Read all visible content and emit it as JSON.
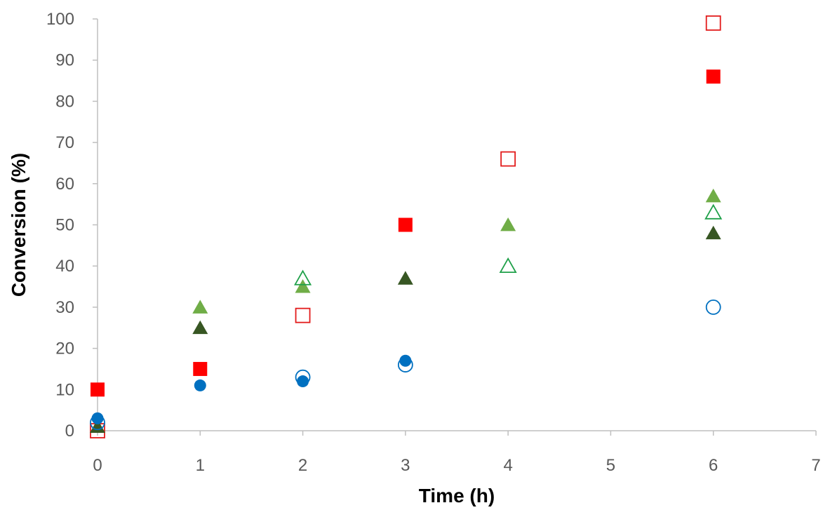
{
  "chart_data": {
    "type": "scatter",
    "title": "",
    "xlabel": "Time (h)",
    "ylabel": "Conversion (%)",
    "xlim": [
      0,
      7
    ],
    "ylim": [
      0,
      100
    ],
    "x_ticks": [
      0,
      1,
      2,
      3,
      4,
      5,
      6,
      7
    ],
    "y_ticks": [
      0,
      10,
      20,
      30,
      40,
      50,
      60,
      70,
      80,
      90,
      100
    ],
    "grid": false,
    "legend": "none",
    "series": [
      {
        "marker": "square",
        "filled": true,
        "color": "#ff0000",
        "x": [
          0,
          1,
          3,
          6
        ],
        "y": [
          10,
          15,
          50,
          86
        ]
      },
      {
        "marker": "square",
        "filled": false,
        "color": "#e21b1b",
        "x": [
          0,
          2,
          4,
          6
        ],
        "y": [
          0,
          28,
          66,
          99
        ]
      },
      {
        "marker": "triangle",
        "filled": true,
        "color": "#70ad47",
        "x": [
          0,
          1,
          2,
          4,
          6
        ],
        "y": [
          1,
          30,
          35,
          50,
          57
        ]
      },
      {
        "marker": "triangle",
        "filled": false,
        "color": "#1fa049",
        "x": [
          2,
          4,
          6
        ],
        "y": [
          37,
          40,
          53
        ]
      },
      {
        "marker": "triangle",
        "filled": true,
        "color": "#375623",
        "x": [
          0,
          1,
          3,
          6
        ],
        "y": [
          1,
          25,
          37,
          48
        ]
      },
      {
        "marker": "circle",
        "filled": false,
        "color": "#0070c0",
        "x": [
          0,
          2,
          3,
          6
        ],
        "y": [
          2,
          13,
          16,
          30
        ]
      },
      {
        "marker": "circle",
        "filled": true,
        "color": "#0070c0",
        "x": [
          0,
          1,
          2,
          3
        ],
        "y": [
          3,
          11,
          12,
          17
        ]
      }
    ]
  }
}
